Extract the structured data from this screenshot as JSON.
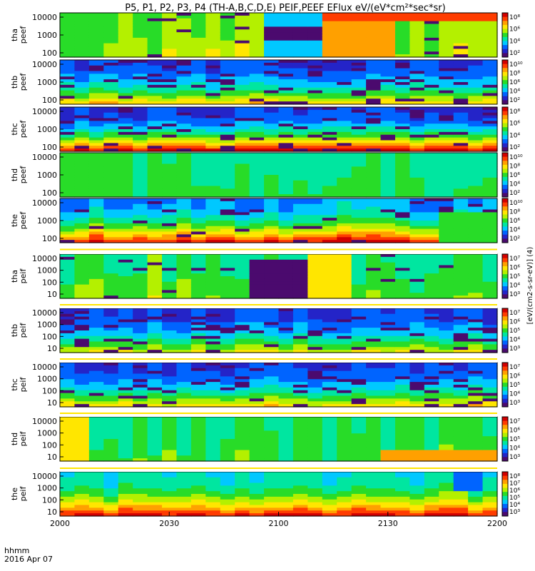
{
  "title": "P5, P1, P2, P3, P4 (TH-A,B,C,D,E) PEIF,PEEF EFlux eV/(eV*cm²*sec*sr)",
  "colors": {
    "palette": [
      "#4b0a6e",
      "#2424c8",
      "#0064ff",
      "#00c8ff",
      "#00e6a0",
      "#28dc28",
      "#b4f000",
      "#ffe600",
      "#ffa000",
      "#ff3c00",
      "#d20000"
    ]
  },
  "chart_data": {
    "type": "heatmap",
    "x": {
      "ticks": [
        "2000",
        "2030",
        "2100",
        "2130",
        "2200"
      ],
      "label_line1": "hhmm",
      "label_line2": "2016 Apr 07",
      "range_minutes": [
        0,
        120
      ]
    },
    "panels": [
      {
        "id": "tha-peef",
        "ylabel": [
          "tha",
          "peef"
        ],
        "ticks": [
          "10000",
          "1000",
          "100"
        ],
        "cb_ticks": [
          "10⁸",
          "10⁶",
          "10⁴",
          "10²"
        ],
        "base": 0.55,
        "band": 0.05,
        "noise": 0.08,
        "streak": 0.05,
        "events": [
          {
            "t0": 56,
            "t1": 71,
            "lo": 0,
            "hi": 1,
            "v": 0.3
          },
          {
            "t0": 56,
            "t1": 71,
            "lo": 0.3,
            "hi": 0.6,
            "v": 0.0
          },
          {
            "t0": 71,
            "t1": 92,
            "lo": 0,
            "hi": 1,
            "v": 0.75
          },
          {
            "t0": 71,
            "t1": 120,
            "lo": 0,
            "hi": 0.18,
            "v": 0.85
          }
        ]
      },
      {
        "id": "thb-peef",
        "ylabel": [
          "thb",
          "peef"
        ],
        "ticks": [
          "10000",
          "1000",
          "100"
        ],
        "cb_ticks": [
          "10¹⁰",
          "10⁸",
          "10⁶",
          "10⁴",
          "10²"
        ],
        "base": 0.15,
        "band": 0.55,
        "noise": 0.06,
        "streak": 0.12,
        "events": []
      },
      {
        "id": "thc-peef",
        "ylabel": [
          "thc",
          "peef"
        ],
        "ticks": [
          "10000",
          "1000",
          "100"
        ],
        "cb_ticks": [
          "10⁸",
          "10⁶",
          "10⁴",
          "10²"
        ],
        "base": 0.12,
        "band": 0.85,
        "noise": 0.06,
        "streak": 0.14,
        "events": []
      },
      {
        "id": "thd-peef",
        "ylabel": [
          "thd",
          "peef"
        ],
        "ticks": [
          "10000",
          "1000",
          "100"
        ],
        "cb_ticks": [
          "10¹⁰",
          "10⁸",
          "10⁶",
          "10⁴",
          "10²"
        ],
        "base": 0.42,
        "band": 0.05,
        "noise": 0.05,
        "streak": 0.0,
        "events": [
          {
            "t0": 0,
            "t1": 20,
            "lo": 0,
            "hi": 1,
            "v": 0.5
          }
        ]
      },
      {
        "id": "the-peef",
        "ylabel": [
          "the",
          "peef"
        ],
        "ticks": [
          "10000",
          "1000",
          "100"
        ],
        "cb_ticks": [
          "10¹⁰",
          "10⁸",
          "10⁶",
          "10⁴",
          "10²"
        ],
        "base": 0.25,
        "band": 0.7,
        "noise": 0.1,
        "streak": 0.08,
        "events": [
          {
            "t0": 103,
            "t1": 120,
            "lo": 0.3,
            "hi": 1,
            "v": 0.5
          }
        ]
      },
      {
        "id": "tha-peif",
        "ylabel": [
          "tha",
          "peif"
        ],
        "ticks": [
          "10000",
          "1000",
          "100",
          "10"
        ],
        "cb_ticks": [
          "10⁷",
          "10⁶",
          "10⁵",
          "10⁴",
          "10³"
        ],
        "base": 0.45,
        "band": 0.1,
        "noise": 0.12,
        "streak": 0.03,
        "events": [
          {
            "t0": 53,
            "t1": 68,
            "lo": 0.1,
            "hi": 1,
            "v": 0.0
          },
          {
            "t0": 68,
            "t1": 80,
            "lo": 0,
            "hi": 1,
            "v": 0.65
          }
        ]
      },
      {
        "id": "thb-peif",
        "ylabel": [
          "thb",
          "peif"
        ],
        "ticks": [
          "10000",
          "1000",
          "100",
          "10"
        ],
        "cb_ticks": [
          "10⁷",
          "10⁶",
          "10⁵",
          "10⁴",
          "10³"
        ],
        "base": 0.15,
        "band": 0.5,
        "noise": 0.06,
        "streak": 0.12,
        "events": []
      },
      {
        "id": "thc-peif",
        "ylabel": [
          "thc",
          "peif"
        ],
        "ticks": [
          "10000",
          "1000",
          "100",
          "10"
        ],
        "cb_ticks": [
          "10⁷",
          "10⁶",
          "10⁵",
          "10⁴",
          "10³"
        ],
        "base": 0.15,
        "band": 0.55,
        "noise": 0.06,
        "streak": 0.12,
        "events": []
      },
      {
        "id": "thd-peif",
        "ylabel": [
          "thd",
          "peif"
        ],
        "ticks": [
          "10000",
          "1000",
          "100",
          "10"
        ],
        "cb_ticks": [
          "10⁷",
          "10⁶",
          "10⁵",
          "10⁴",
          "10³"
        ],
        "base": 0.45,
        "band": 0.05,
        "noise": 0.08,
        "streak": 0.0,
        "events": [
          {
            "t0": 0,
            "t1": 10,
            "lo": 0,
            "hi": 1,
            "v": 0.7
          },
          {
            "t0": 90,
            "t1": 120,
            "lo": 0.75,
            "hi": 1,
            "v": 0.8
          }
        ]
      },
      {
        "id": "the-peif",
        "ylabel": [
          "the",
          "peif"
        ],
        "ticks": [
          "10000",
          "1000",
          "100",
          "10"
        ],
        "cb_ticks": [
          "10⁸",
          "10⁷",
          "10⁶",
          "10⁵",
          "10⁴",
          "10³"
        ],
        "base": 0.35,
        "band": 0.6,
        "noise": 0.08,
        "streak": 0.0,
        "events": [
          {
            "t0": 110,
            "t1": 118,
            "lo": 0,
            "hi": 0.4,
            "v": 0.2
          }
        ]
      }
    ],
    "colorbar_label": "[eV/(cm2-s-sr-eV)] (4)"
  }
}
